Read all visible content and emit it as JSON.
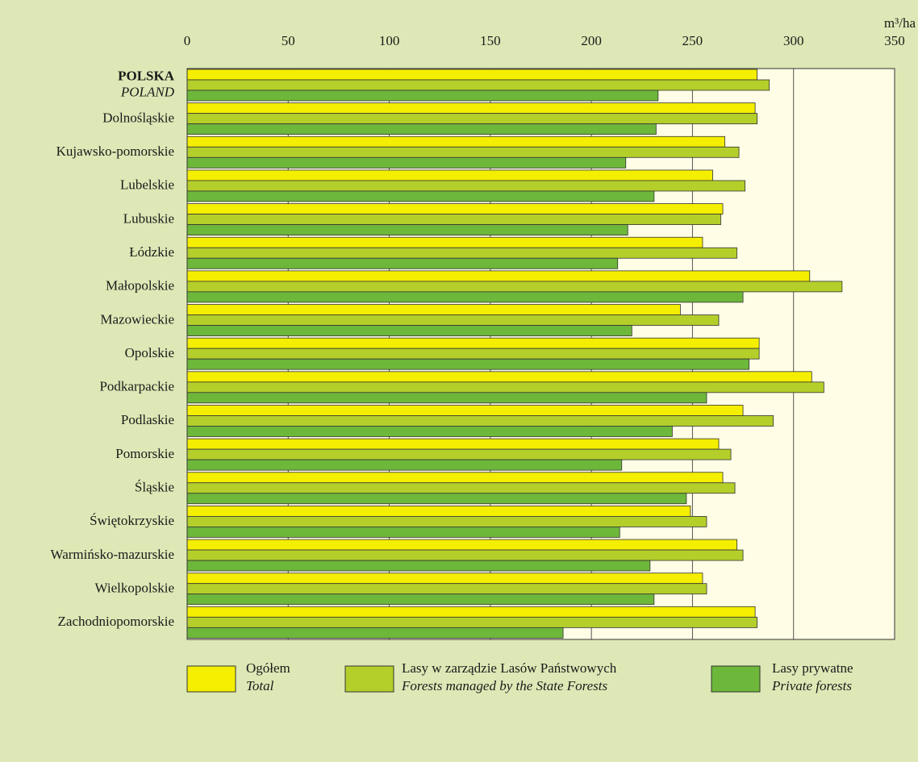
{
  "chart_data": {
    "type": "hbar",
    "x_unit": "m³/ha",
    "categories": [
      "POLSKA",
      "Dolnośląskie",
      "Kujawsko-pomorskie",
      "Lubelskie",
      "Lubuskie",
      "Łódzkie",
      "Małopolskie",
      "Mazowieckie",
      "Opolskie",
      "Podkarpackie",
      "Podlaskie",
      "Pomorskie",
      "Śląskie",
      "Świętokrzyskie",
      "Warmińsko-mazurskie",
      "Wielkopolskie",
      "Zachodniopomorskie"
    ],
    "first_category_translation": "POLAND",
    "series": [
      {
        "name": "Ogółem",
        "name_en": "Total",
        "color": "#f4ee00",
        "values": [
          282,
          281,
          266,
          260,
          265,
          255,
          308,
          244,
          283,
          309,
          275,
          263,
          265,
          249,
          272,
          255,
          281
        ]
      },
      {
        "name": "Lasy w zarządzie Lasów Państwowych",
        "name_en": "Forests managed by the State Forests",
        "color": "#b4cf2a",
        "values": [
          288,
          282,
          273,
          276,
          264,
          272,
          324,
          263,
          283,
          315,
          290,
          269,
          271,
          257,
          275,
          257,
          282
        ]
      },
      {
        "name": "Lasy prywatne",
        "name_en": "Private forests",
        "color": "#6db73b",
        "values": [
          233,
          232,
          217,
          231,
          218,
          213,
          275,
          220,
          278,
          257,
          240,
          215,
          247,
          214,
          229,
          231,
          186
        ]
      }
    ],
    "xlim": [
      0,
      350
    ],
    "xticks": [
      0,
      50,
      100,
      150,
      200,
      250,
      300,
      350
    ],
    "grid": true
  }
}
